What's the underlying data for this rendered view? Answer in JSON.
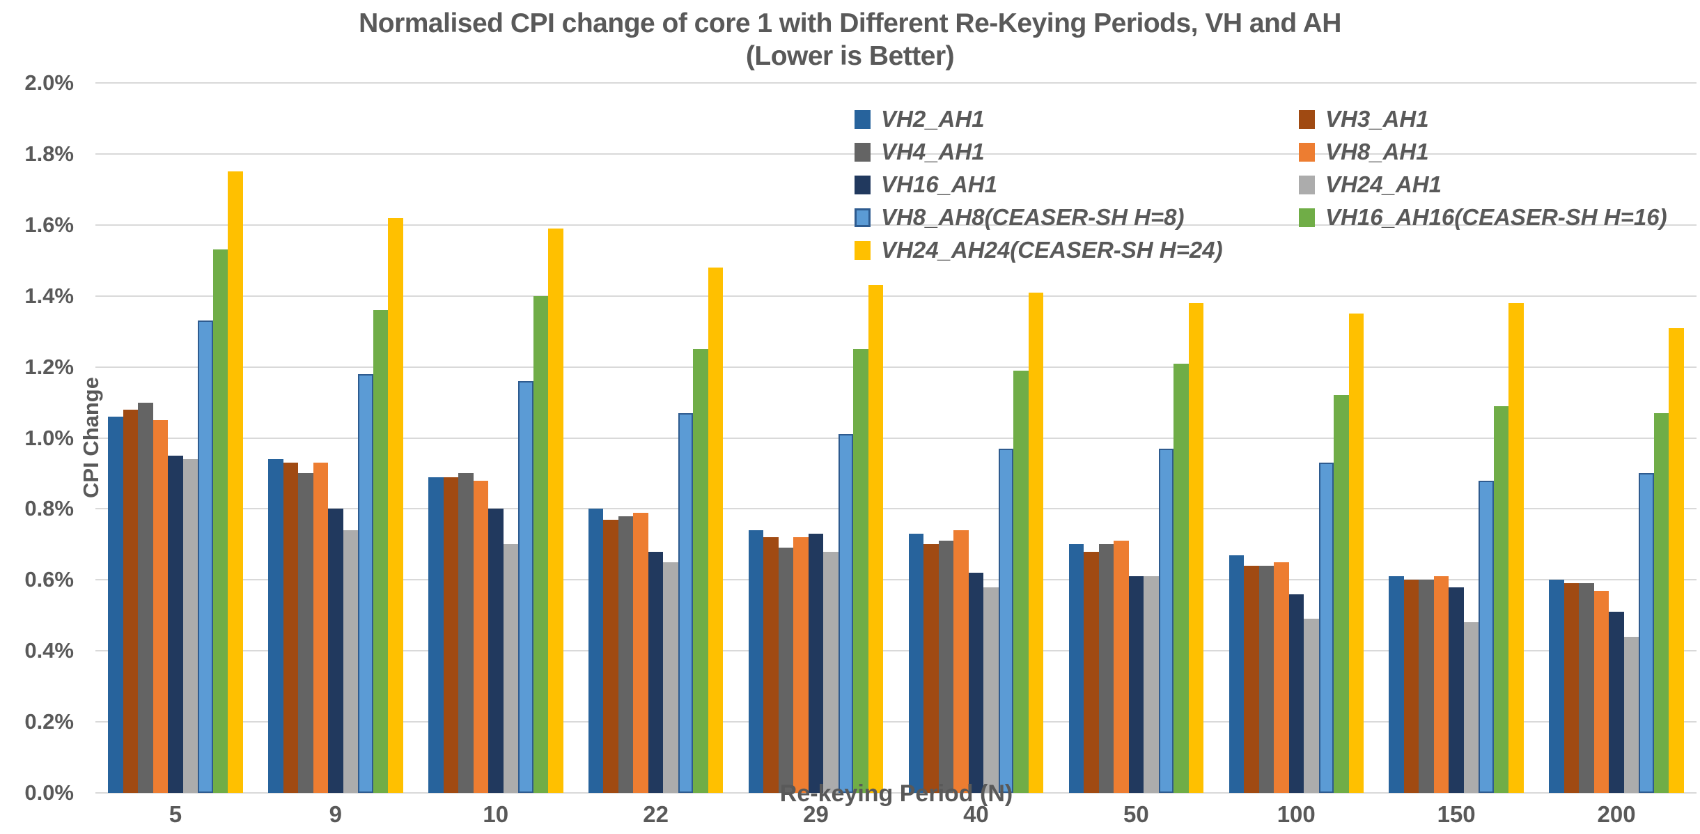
{
  "title": {
    "line1": "Normalised CPI change of core 1 with Different Re-Keying Periods, VH and AH",
    "line2": "(Lower is Better)"
  },
  "colors": {
    "text": "#595959",
    "gridline": "#d9d9d9"
  },
  "chart_data": {
    "type": "bar",
    "title": "Normalised CPI change of core 1 with Different Re-Keying Periods, VH and AH (Lower is Better)",
    "xlabel": "Re-keying Period  (N)",
    "ylabel": "CPI Change",
    "ylim": [
      0,
      2.0
    ],
    "ytick_step": 0.2,
    "yticks": [
      "0.0%",
      "0.2%",
      "0.4%",
      "0.6%",
      "0.8%",
      "1.0%",
      "1.2%",
      "1.4%",
      "1.6%",
      "1.8%",
      "2.0%"
    ],
    "grid": "horizontal",
    "legend_position": "inside-top-right, two columns",
    "value_unit": "percent",
    "categories": [
      "5",
      "9",
      "10",
      "22",
      "29",
      "40",
      "50",
      "100",
      "150",
      "200"
    ],
    "series": [
      {
        "name": "VH2_AH1",
        "color": "#27639c",
        "values": [
          1.06,
          0.94,
          0.89,
          0.8,
          0.74,
          0.73,
          0.7,
          0.67,
          0.61,
          0.6
        ]
      },
      {
        "name": "VH3_AH1",
        "color": "#a04a12",
        "values": [
          1.08,
          0.93,
          0.89,
          0.77,
          0.72,
          0.7,
          0.68,
          0.64,
          0.6,
          0.59
        ]
      },
      {
        "name": "VH4_AH1",
        "color": "#646464",
        "values": [
          1.1,
          0.9,
          0.9,
          0.78,
          0.69,
          0.71,
          0.7,
          0.64,
          0.6,
          0.59
        ]
      },
      {
        "name": "VH8_AH1",
        "color": "#ed7d31",
        "values": [
          1.05,
          0.93,
          0.88,
          0.79,
          0.72,
          0.74,
          0.71,
          0.65,
          0.61,
          0.57
        ]
      },
      {
        "name": "VH16_AH1",
        "color": "#21395e",
        "values": [
          0.95,
          0.8,
          0.8,
          0.68,
          0.73,
          0.62,
          0.61,
          0.56,
          0.58,
          0.51
        ]
      },
      {
        "name": "VH24_AH1",
        "color": "#acacac",
        "values": [
          0.94,
          0.74,
          0.7,
          0.65,
          0.68,
          0.58,
          0.61,
          0.49,
          0.48,
          0.44
        ]
      },
      {
        "name": "VH8_AH8(CEASER-SH H=8)",
        "color": "#5b9bd5",
        "border": "#2e5b8f",
        "values": [
          1.33,
          1.18,
          1.16,
          1.07,
          1.01,
          0.97,
          0.97,
          0.93,
          0.88,
          0.9
        ]
      },
      {
        "name": "VH16_AH16(CEASER-SH H=16)",
        "color": "#70ad47",
        "values": [
          1.53,
          1.36,
          1.4,
          1.25,
          1.25,
          1.19,
          1.21,
          1.12,
          1.09,
          1.07
        ]
      },
      {
        "name": "VH24_AH24(CEASER-SH H=24)",
        "color": "#ffc000",
        "values": [
          1.75,
          1.62,
          1.59,
          1.48,
          1.43,
          1.41,
          1.38,
          1.35,
          1.38,
          1.31
        ]
      }
    ]
  }
}
